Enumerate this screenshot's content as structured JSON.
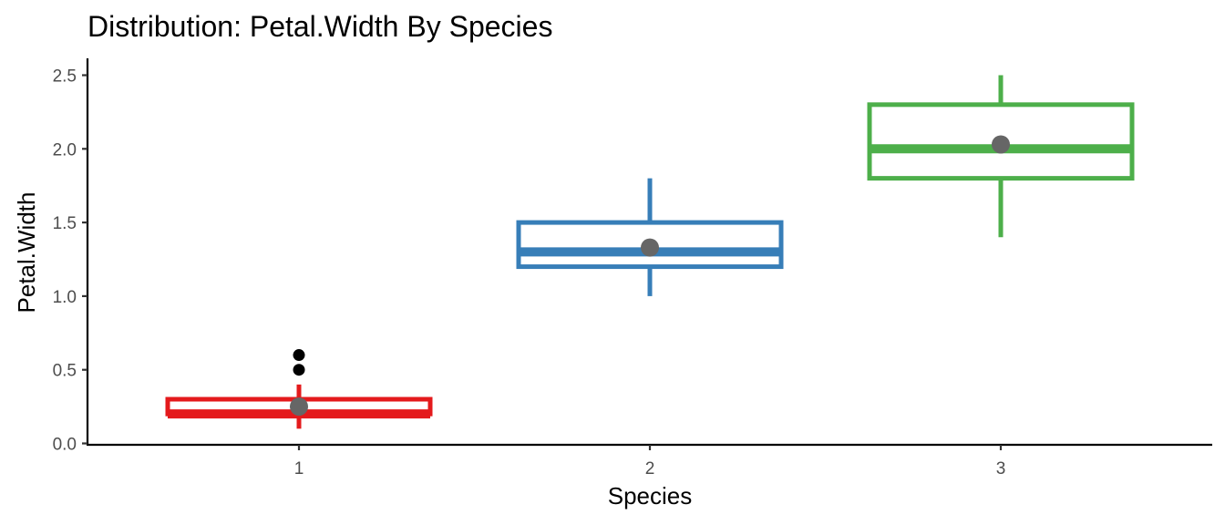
{
  "chart_data": {
    "type": "boxplot",
    "title": "Distribution: Petal.Width By Species",
    "xlabel": "Species",
    "ylabel": "Petal.Width",
    "ylim": [
      0,
      2.5
    ],
    "yticks": [
      0.0,
      0.5,
      1.0,
      1.5,
      2.0,
      2.5
    ],
    "ytick_labels": [
      "0.0",
      "0.5",
      "1.0",
      "1.5",
      "2.0",
      "2.5"
    ],
    "categories": [
      "1",
      "2",
      "3"
    ],
    "grid": false,
    "legend": "none",
    "boxes": [
      {
        "category": "1",
        "whisker_low": 0.1,
        "q1": 0.2,
        "median": 0.2,
        "q3": 0.3,
        "whisker_high": 0.4,
        "mean": 0.25,
        "outliers": [
          0.5,
          0.6
        ],
        "color": "#e41a1c"
      },
      {
        "category": "2",
        "whisker_low": 1.0,
        "q1": 1.2,
        "median": 1.3,
        "q3": 1.5,
        "whisker_high": 1.8,
        "mean": 1.33,
        "outliers": [],
        "color": "#377eb8"
      },
      {
        "category": "3",
        "whisker_low": 1.4,
        "q1": 1.8,
        "median": 2.0,
        "q3": 2.3,
        "whisker_high": 2.5,
        "mean": 2.03,
        "outliers": [],
        "color": "#4daf4a"
      }
    ],
    "mean_point_color": "#666666",
    "outlier_color": "#000000"
  }
}
